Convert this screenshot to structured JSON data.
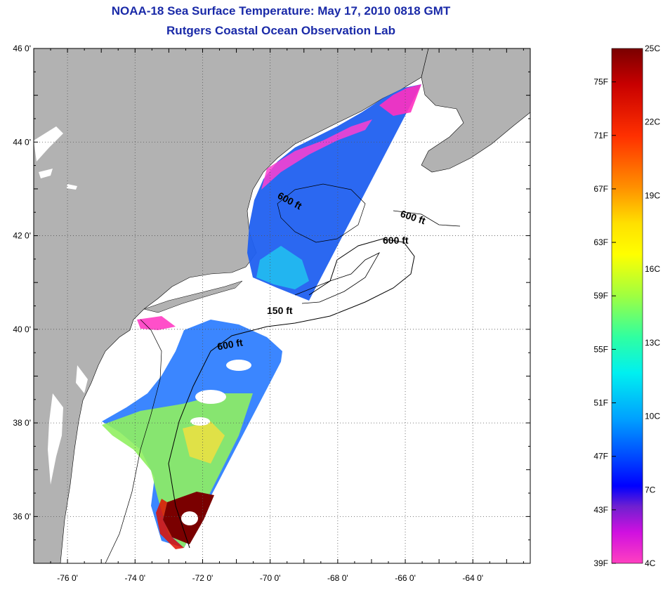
{
  "title": "NOAA-18 Sea Surface Temperature:  May 17, 2010 0818 GMT",
  "subtitle": "Rutgers Coastal Ocean Observation Lab",
  "map": {
    "lat_labels": [
      "46 0'",
      "44 0'",
      "42 0'",
      "40 0'",
      "38 0'",
      "36 0'"
    ],
    "lat_values": [
      46,
      44,
      42,
      40,
      38,
      36
    ],
    "lon_labels": [
      "-76 0'",
      "-74 0'",
      "-72 0'",
      "-70 0'",
      "-68 0'",
      "-66 0'",
      "-64 0'"
    ],
    "lon_values": [
      -76,
      -74,
      -72,
      -70,
      -68,
      -66,
      -64
    ],
    "lon_range": [
      -77,
      -62.3
    ],
    "lat_range": [
      35,
      46
    ],
    "contour_labels": [
      "600 ft",
      "600 ft",
      "600 ft",
      "150 ft",
      "600 ft"
    ],
    "colors": {
      "land": "#b2b2b2",
      "ocean": "#ffffff",
      "grid": "#555555"
    }
  },
  "colorbar": {
    "fahrenheit_labels": [
      "75F",
      "71F",
      "67F",
      "63F",
      "59F",
      "55F",
      "51F",
      "47F",
      "43F",
      "39F"
    ],
    "celsius_labels": [
      "25C",
      "22C",
      "19C",
      "16C",
      "13C",
      "10C",
      "7C",
      "4C"
    ],
    "gradient_colors": [
      "#7a0000",
      "#d50000",
      "#ff3c00",
      "#ff8c00",
      "#ffd200",
      "#ffff00",
      "#a8ff32",
      "#32ff96",
      "#00f0f0",
      "#00a0ff",
      "#0040ff",
      "#0000ff",
      "#6a1fd6",
      "#c20fe0",
      "#ff10d0",
      "#ff40c0"
    ]
  }
}
